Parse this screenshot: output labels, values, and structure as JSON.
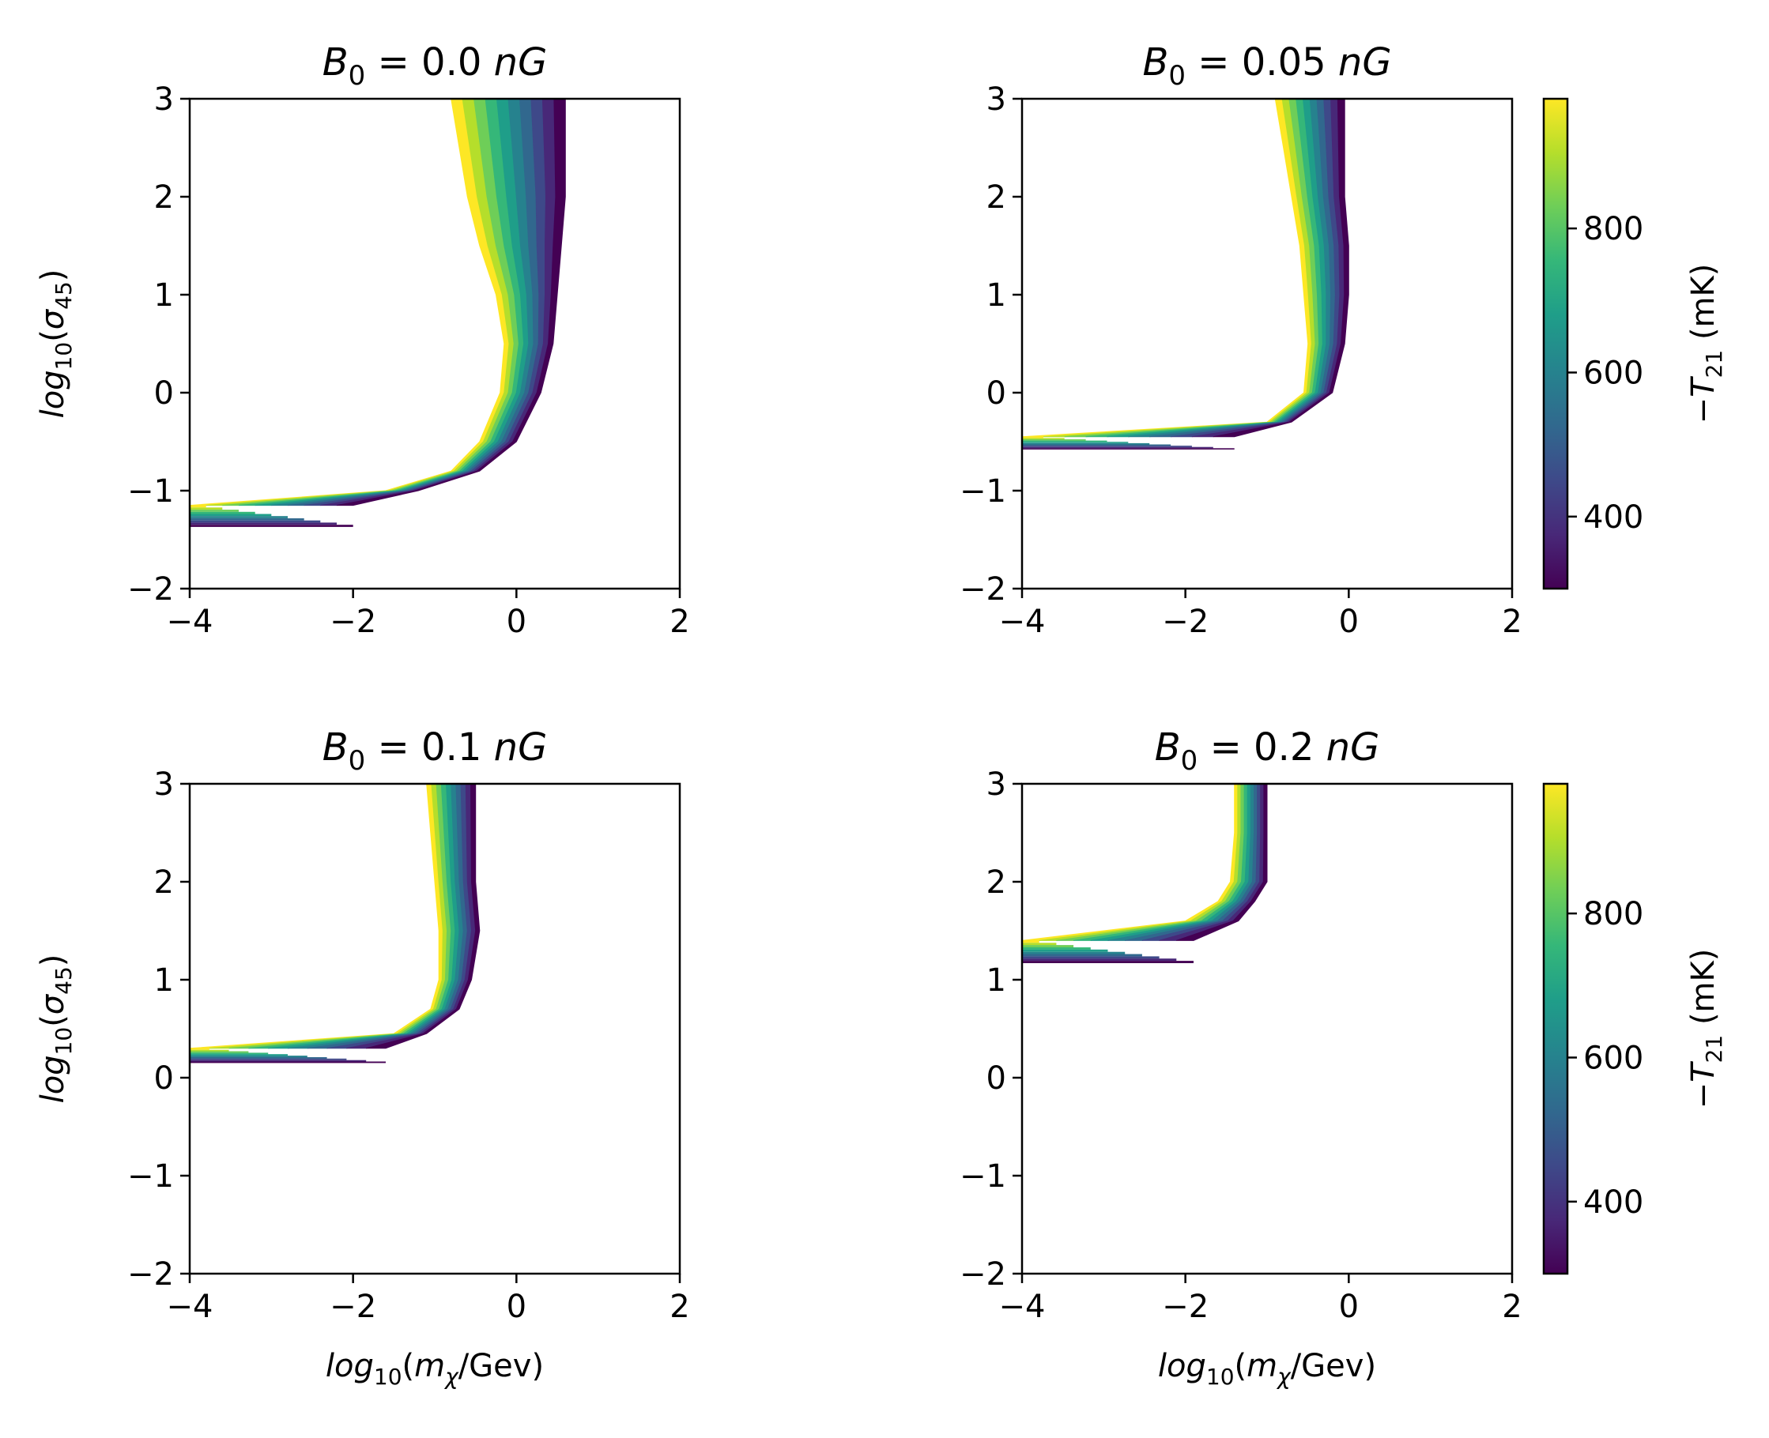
{
  "chart_data": [
    {
      "type": "heatmap",
      "title": {
        "var": "B",
        "sub": "0",
        "rest": " = 0.0 ",
        "unit": "nG"
      },
      "xlabel": "",
      "ylabel": {
        "a": "log",
        "asub": "10",
        "b": "(",
        "c": "σ",
        "csub": "45",
        "d": ")"
      },
      "xlim": [
        -4,
        2
      ],
      "ylim": [
        -2,
        3
      ],
      "xticks": [
        "−4",
        "−2",
        "0",
        "2"
      ],
      "yticks": [
        "3",
        "2",
        "1",
        "0",
        "−1",
        "−2"
      ],
      "colormap": [
        "#440154",
        "#482878",
        "#3e4989",
        "#31688e",
        "#26828e",
        "#1f9e89",
        "#35b779",
        "#6ece58",
        "#b5de2b",
        "#fde725"
      ],
      "band": {
        "y": [
          3.0,
          2.5,
          2.0,
          1.5,
          1.0,
          0.5,
          0.0,
          -0.5,
          -0.8,
          -1.0,
          -1.15
        ],
        "x_bright_edge": [
          -0.8,
          -0.7,
          -0.6,
          -0.45,
          -0.25,
          -0.15,
          -0.2,
          -0.45,
          -0.8,
          -1.6,
          -4.0
        ],
        "x_dark_edge": [
          0.6,
          0.6,
          0.6,
          0.55,
          0.5,
          0.45,
          0.3,
          0.0,
          -0.45,
          -1.2,
          -2.0
        ],
        "x_min": -4.0,
        "horizontal_thickness": 0.22
      },
      "colorbar": null
    },
    {
      "type": "heatmap",
      "title": {
        "var": "B",
        "sub": "0",
        "rest": " = 0.05 ",
        "unit": "nG"
      },
      "xlabel": "",
      "ylabel": null,
      "xlim": [
        -4,
        2
      ],
      "ylim": [
        -2,
        3
      ],
      "xticks": [
        "−4",
        "−2",
        "0",
        "2"
      ],
      "yticks": [
        "3",
        "2",
        "1",
        "0",
        "−1",
        "−2"
      ],
      "band": {
        "y": [
          3.0,
          2.5,
          2.0,
          1.5,
          1.0,
          0.5,
          0.0,
          -0.3,
          -0.45
        ],
        "x_bright_edge": [
          -0.9,
          -0.8,
          -0.7,
          -0.6,
          -0.55,
          -0.5,
          -0.55,
          -1.0,
          -4.0
        ],
        "x_dark_edge": [
          -0.05,
          -0.05,
          -0.05,
          0.0,
          0.0,
          -0.05,
          -0.2,
          -0.7,
          -1.4
        ],
        "x_min": -4.0,
        "horizontal_thickness": 0.13
      },
      "colorbar": {
        "label": {
          "a": "−",
          "b": "T",
          "bsub": "21",
          "c": " (mK)"
        },
        "range": [
          300,
          980
        ],
        "ticks": [
          400,
          600,
          800
        ],
        "tick_labels": [
          "400",
          "600",
          "800"
        ]
      }
    },
    {
      "type": "heatmap",
      "title": {
        "var": "B",
        "sub": "0",
        "rest": " = 0.1 ",
        "unit": "nG"
      },
      "xlabel": {
        "a": "log",
        "asub": "10",
        "b": "(",
        "c": "m",
        "csub": "χ",
        "d": "/Gev)"
      },
      "ylabel": {
        "a": "log",
        "asub": "10",
        "b": "(",
        "c": "σ",
        "csub": "45",
        "d": ")"
      },
      "xlim": [
        -4,
        2
      ],
      "ylim": [
        -2,
        3
      ],
      "xticks": [
        "−4",
        "−2",
        "0",
        "2"
      ],
      "yticks": [
        "3",
        "2",
        "1",
        "0",
        "−1",
        "−2"
      ],
      "band": {
        "y": [
          3.0,
          2.5,
          2.0,
          1.5,
          1.0,
          0.7,
          0.45,
          0.3
        ],
        "x_bright_edge": [
          -1.1,
          -1.05,
          -1.0,
          -0.95,
          -0.95,
          -1.05,
          -1.5,
          -4.0
        ],
        "x_dark_edge": [
          -0.5,
          -0.5,
          -0.5,
          -0.45,
          -0.55,
          -0.7,
          -1.1,
          -1.6
        ],
        "x_min": -4.0,
        "horizontal_thickness": 0.15
      },
      "colorbar": null
    },
    {
      "type": "heatmap",
      "title": {
        "var": "B",
        "sub": "0",
        "rest": " = 0.2 ",
        "unit": "nG"
      },
      "xlabel": {
        "a": "log",
        "asub": "10",
        "b": "(",
        "c": "m",
        "csub": "χ",
        "d": "/Gev)"
      },
      "ylabel": null,
      "xlim": [
        -4,
        2
      ],
      "ylim": [
        -2,
        3
      ],
      "xticks": [
        "−4",
        "−2",
        "0",
        "2"
      ],
      "yticks": [
        "3",
        "2",
        "1",
        "0",
        "−1",
        "−2"
      ],
      "band": {
        "y": [
          3.0,
          2.5,
          2.0,
          1.8,
          1.6,
          1.4
        ],
        "x_bright_edge": [
          -1.4,
          -1.4,
          -1.45,
          -1.6,
          -2.0,
          -4.0
        ],
        "x_dark_edge": [
          -1.0,
          -1.0,
          -1.0,
          -1.15,
          -1.35,
          -1.9
        ],
        "x_min": -4.0,
        "horizontal_thickness": 0.23
      },
      "colorbar": {
        "label": {
          "a": "−",
          "b": "T",
          "bsub": "21",
          "c": " (mK)"
        },
        "range": [
          300,
          980
        ],
        "ticks": [
          400,
          600,
          800
        ],
        "tick_labels": [
          "400",
          "600",
          "800"
        ]
      }
    }
  ]
}
